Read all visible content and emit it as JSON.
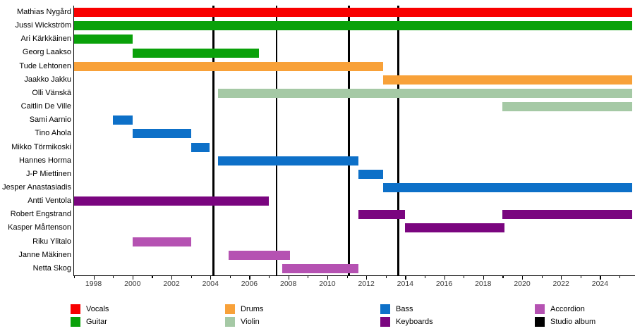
{
  "chart_data": {
    "type": "bar",
    "variant": "horizontal-gantt-timeline",
    "title": "",
    "background": "#ffffff",
    "x_axis": {
      "min": 1997.0,
      "max": 2025.65,
      "minor_tick_every": 1,
      "labeled_ticks": [
        1998,
        2000,
        2002,
        2004,
        2006,
        2008,
        2010,
        2012,
        2014,
        2016,
        2018,
        2020,
        2022,
        2024
      ]
    },
    "instrument_colors": {
      "Vocals": "#f80000",
      "Guitar": "#0aa10a",
      "Drums": "#f8a139",
      "Violin": "#a5c9a5",
      "Bass": "#0d70c8",
      "Keyboards": "#7a057f",
      "Accordion": "#b552b2",
      "Studio album": "#000000"
    },
    "members": [
      {
        "name": "Mathias Nygård",
        "instrument": "Vocals",
        "periods": [
          [
            1997.0,
            "present"
          ]
        ]
      },
      {
        "name": "Jussi Wickström",
        "instrument": "Guitar",
        "periods": [
          [
            1997.0,
            "present"
          ]
        ]
      },
      {
        "name": "Ari Kärkkäinen",
        "instrument": "Guitar",
        "periods": [
          [
            1997.0,
            2000.0
          ]
        ]
      },
      {
        "name": "Georg Laakso",
        "instrument": "Guitar",
        "periods": [
          [
            2000.0,
            2006.5
          ]
        ]
      },
      {
        "name": "Tude Lehtonen",
        "instrument": "Drums",
        "periods": [
          [
            1997.0,
            2012.85
          ]
        ]
      },
      {
        "name": "Jaakko Jakku",
        "instrument": "Drums",
        "periods": [
          [
            2012.85,
            "present"
          ]
        ]
      },
      {
        "name": "Olli Vänskä",
        "instrument": "Violin",
        "periods": [
          [
            2004.4,
            "present"
          ]
        ]
      },
      {
        "name": "Caitlin De Ville",
        "instrument": "Violin",
        "periods": [
          [
            2019.0,
            "present"
          ]
        ]
      },
      {
        "name": "Sami Aarnio",
        "instrument": "Bass",
        "periods": [
          [
            1999.0,
            2000.0
          ]
        ]
      },
      {
        "name": "Tino Ahola",
        "instrument": "Bass",
        "periods": [
          [
            2000.0,
            2003.0
          ]
        ]
      },
      {
        "name": "Mikko Törmikoski",
        "instrument": "Bass",
        "periods": [
          [
            2003.0,
            2003.95
          ]
        ]
      },
      {
        "name": "Hannes Horma",
        "instrument": "Bass",
        "periods": [
          [
            2004.4,
            2011.6
          ]
        ]
      },
      {
        "name": "J-P Miettinen",
        "instrument": "Bass",
        "periods": [
          [
            2011.6,
            2012.85
          ]
        ]
      },
      {
        "name": "Jesper Anastasiadis",
        "instrument": "Bass",
        "periods": [
          [
            2012.85,
            "present"
          ]
        ]
      },
      {
        "name": "Antti Ventola",
        "instrument": "Keyboards",
        "periods": [
          [
            1997.0,
            2007.0
          ]
        ]
      },
      {
        "name": "Robert Engstrand",
        "instrument": "Keyboards",
        "periods": [
          [
            2011.6,
            2014.0
          ],
          [
            2019.0,
            "present"
          ]
        ]
      },
      {
        "name": "Kasper Mårtenson",
        "instrument": "Keyboards",
        "periods": [
          [
            2014.0,
            2019.1
          ]
        ]
      },
      {
        "name": "Riku Ylitalo",
        "instrument": "Accordion",
        "periods": [
          [
            2000.0,
            2003.0
          ]
        ]
      },
      {
        "name": "Janne Mäkinen",
        "instrument": "Accordion",
        "periods": [
          [
            2004.95,
            2008.1
          ]
        ]
      },
      {
        "name": "Netta Skog",
        "instrument": "Accordion",
        "periods": [
          [
            2007.7,
            2011.6
          ]
        ]
      }
    ],
    "album_lines": {
      "legend_label": "Studio album",
      "color": "#000000",
      "years": [
        2004.15,
        2007.4,
        2011.1,
        2013.65
      ]
    },
    "legend": [
      {
        "label": "Vocals",
        "color": "#f80000"
      },
      {
        "label": "Guitar",
        "color": "#0aa10a"
      },
      {
        "label": "Drums",
        "color": "#f8a139"
      },
      {
        "label": "Violin",
        "color": "#a5c9a5"
      },
      {
        "label": "Bass",
        "color": "#0d70c8"
      },
      {
        "label": "Keyboards",
        "color": "#7a057f"
      },
      {
        "label": "Accordion",
        "color": "#b552b2"
      },
      {
        "label": "Studio album",
        "color": "#000000"
      }
    ]
  }
}
